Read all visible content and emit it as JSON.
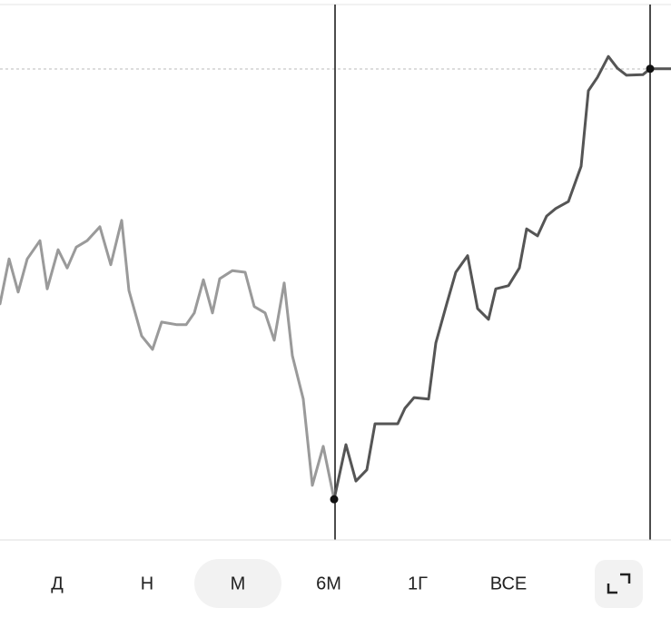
{
  "chart_data": {
    "type": "line",
    "xlim": [
      0,
      739
    ],
    "ylim": [
      0,
      100
    ],
    "series": [
      {
        "color": "#9a9a9a",
        "x": [
          0,
          10,
          20,
          30,
          44,
          52,
          64,
          74,
          84,
          96,
          110,
          122,
          134,
          142,
          156,
          168,
          178,
          195,
          205,
          214,
          224,
          234,
          242,
          256,
          270,
          280,
          292,
          302,
          313,
          322,
          334,
          344,
          356,
          368
        ],
        "values": [
          44.1,
          52.5,
          46.3,
          52.5,
          55.9,
          46.9,
          54.2,
          50.8,
          54.7,
          55.9,
          58.5,
          51.4,
          59.7,
          46.6,
          38.1,
          35.6,
          40.7,
          40.2,
          40.2,
          42.4,
          48.6,
          42.4,
          48.8,
          50.3,
          50,
          43.6,
          42.4,
          37.3,
          48,
          34.4,
          26.3,
          10.2,
          17.5,
          7.6
        ]
      },
      {
        "color": "#555555",
        "x": [
          368,
          381,
          392,
          404,
          413,
          438,
          446,
          456,
          472,
          480,
          492,
          502,
          515,
          526,
          538,
          546,
          560,
          572,
          580,
          592,
          602,
          612,
          626,
          640,
          648,
          658,
          670,
          680,
          690,
          708,
          716,
          739
        ],
        "values": [
          7.6,
          17.8,
          11,
          13.1,
          21.7,
          21.7,
          24.6,
          26.6,
          26.3,
          36.8,
          44.1,
          50,
          53.1,
          43.2,
          41.2,
          46.9,
          47.5,
          50.8,
          58.1,
          56.8,
          60.5,
          61.9,
          63.2,
          69.8,
          83.9,
          86.4,
          90.3,
          88.1,
          86.8,
          86.9,
          88,
          88
        ]
      }
    ]
  },
  "buttons": [
    "Д",
    "Н",
    "М",
    "6М",
    "1Г",
    "ВСЕ"
  ],
  "active": 2
}
